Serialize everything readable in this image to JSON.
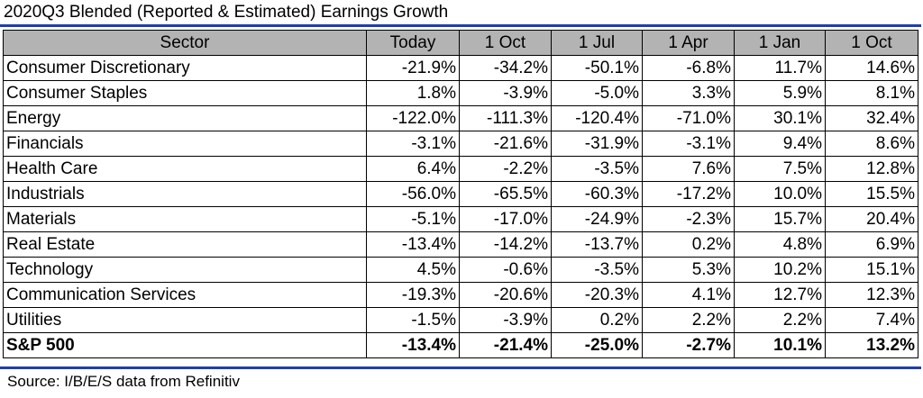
{
  "title": "2020Q3 Blended (Reported & Estimated) Earnings Growth",
  "source": "Source: I/B/E/S data from Refinitiv",
  "colors": {
    "header_bg": "#b3b3b3",
    "rule": "#1f3fa8"
  },
  "chart_data": {
    "type": "table",
    "title": "2020Q3 Blended (Reported & Estimated) Earnings Growth",
    "columns": [
      "Sector",
      "Today",
      "1 Oct",
      "1 Jul",
      "1 Apr",
      "1 Jan",
      "1 Oct"
    ],
    "rows": [
      [
        "Consumer Discretionary",
        "-21.9%",
        "-34.2%",
        "-50.1%",
        "-6.8%",
        "11.7%",
        "14.6%"
      ],
      [
        "Consumer Staples",
        "1.8%",
        "-3.9%",
        "-5.0%",
        "3.3%",
        "5.9%",
        "8.1%"
      ],
      [
        "Energy",
        "-122.0%",
        "-111.3%",
        "-120.4%",
        "-71.0%",
        "30.1%",
        "32.4%"
      ],
      [
        "Financials",
        "-3.1%",
        "-21.6%",
        "-31.9%",
        "-3.1%",
        "9.4%",
        "8.6%"
      ],
      [
        "Health Care",
        "6.4%",
        "-2.2%",
        "-3.5%",
        "7.6%",
        "7.5%",
        "12.8%"
      ],
      [
        "Industrials",
        "-56.0%",
        "-65.5%",
        "-60.3%",
        "-17.2%",
        "10.0%",
        "15.5%"
      ],
      [
        "Materials",
        "-5.1%",
        "-17.0%",
        "-24.9%",
        "-2.3%",
        "15.7%",
        "20.4%"
      ],
      [
        "Real Estate",
        "-13.4%",
        "-14.2%",
        "-13.7%",
        "0.2%",
        "4.8%",
        "6.9%"
      ],
      [
        "Technology",
        "4.5%",
        "-0.6%",
        "-3.5%",
        "5.3%",
        "10.2%",
        "15.1%"
      ],
      [
        "Communication Services",
        "-19.3%",
        "-20.6%",
        "-20.3%",
        "4.1%",
        "12.7%",
        "12.3%"
      ],
      [
        "Utilities",
        "-1.5%",
        "-3.9%",
        "0.2%",
        "2.2%",
        "2.2%",
        "7.4%"
      ]
    ],
    "total_row": [
      "S&P 500",
      "-13.4%",
      "-21.4%",
      "-25.0%",
      "-2.7%",
      "10.1%",
      "13.2%"
    ]
  }
}
